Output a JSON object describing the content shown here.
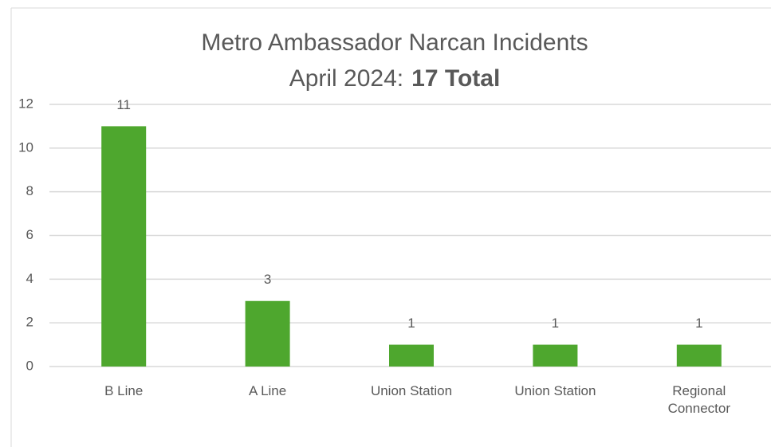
{
  "chart_data": {
    "type": "bar",
    "title": "Metro Ambassador Narcan Incidents",
    "subtitle": "April 2024:",
    "subtitle_emphasis": "17 Total",
    "categories": [
      "B Line",
      "A Line",
      "Union Station",
      "Union Station",
      "Regional Connector"
    ],
    "values": [
      11,
      3,
      1,
      1,
      1
    ],
    "color": "#4ea72e",
    "ylim": [
      0,
      12
    ],
    "yticks": [
      0,
      2,
      4,
      6,
      8,
      10,
      12
    ],
    "grid": true,
    "data_labels": true
  }
}
